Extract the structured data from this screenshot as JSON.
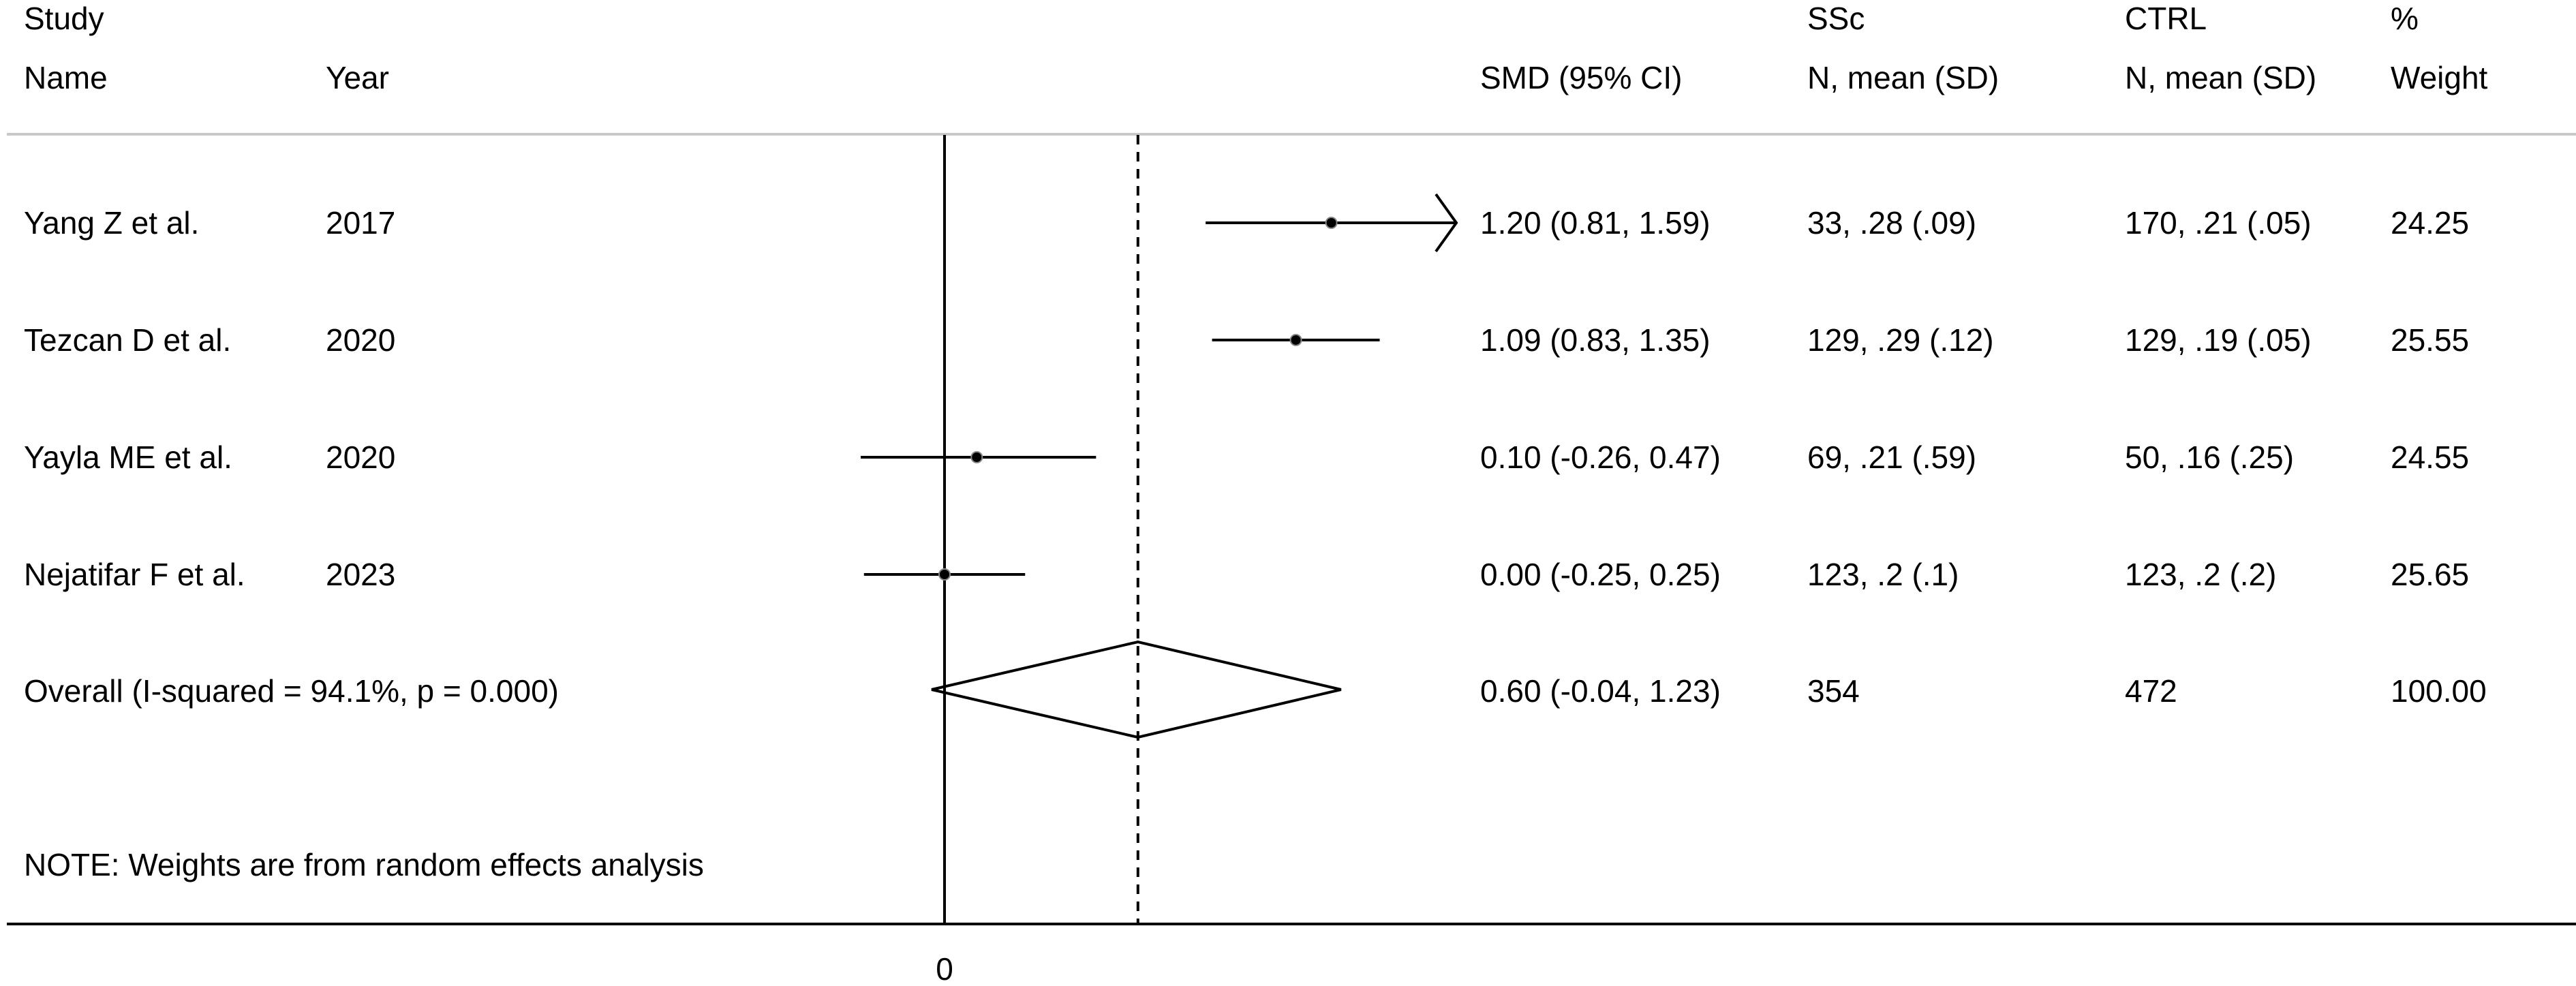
{
  "header": {
    "study_top": "Study",
    "study_bottom": "Name",
    "year": "Year",
    "smd": "SMD (95% CI)",
    "ssc_top": "SSc",
    "ssc_bottom": "N, mean (SD)",
    "ctrl_top": "CTRL",
    "ctrl_bottom": "N, mean (SD)",
    "weight_top": "%",
    "weight_bottom": "Weight"
  },
  "note": "NOTE: Weights are from random effects analysis",
  "colors": {
    "line": "#000000",
    "separator": "#c8c8c8",
    "marker": "#000000",
    "background": "#ffffff"
  },
  "chart_data": {
    "type": "forest",
    "x_ticks": [
      0
    ],
    "x_tick_labels": [
      "0"
    ],
    "reference_line": 0,
    "overall_line": 0.6,
    "x_range_visible": [
      -0.26,
      1.35
    ],
    "studies": [
      {
        "name": "Yang Z et al.",
        "year": "2017",
        "smd": 1.2,
        "lower": 0.81,
        "upper": 1.59,
        "ci_text": "1.20 (0.81, 1.59)",
        "ssc_text": "33, .28 (.09)",
        "ctrl_text": "170, .21 (.05)",
        "weight_text": "24.25",
        "upper_truncated": true
      },
      {
        "name": "Tezcan D et al.",
        "year": "2020",
        "smd": 1.09,
        "lower": 0.83,
        "upper": 1.35,
        "ci_text": "1.09 (0.83, 1.35)",
        "ssc_text": "129, .29 (.12)",
        "ctrl_text": "129, .19 (.05)",
        "weight_text": "25.55",
        "upper_truncated": false
      },
      {
        "name": "Yayla ME et al.",
        "year": "2020",
        "smd": 0.1,
        "lower": -0.26,
        "upper": 0.47,
        "ci_text": "0.10 (-0.26, 0.47)",
        "ssc_text": "69, .21 (.59)",
        "ctrl_text": "50, .16 (.25)",
        "weight_text": "24.55",
        "upper_truncated": false
      },
      {
        "name": "Nejatifar F et al.",
        "year": "2023",
        "smd": 0.0,
        "lower": -0.25,
        "upper": 0.25,
        "ci_text": "0.00 (-0.25, 0.25)",
        "ssc_text": "123, .2 (.1)",
        "ctrl_text": "123, .2 (.2)",
        "weight_text": "25.65",
        "upper_truncated": false
      }
    ],
    "overall": {
      "label": "Overall  (I-squared = 94.1%, p = 0.000)",
      "smd": 0.6,
      "lower": -0.04,
      "upper": 1.23,
      "ci_text": "0.60 (-0.04, 1.23)",
      "ssc_text": "354",
      "ctrl_text": "472",
      "weight_text": "100.00"
    }
  }
}
